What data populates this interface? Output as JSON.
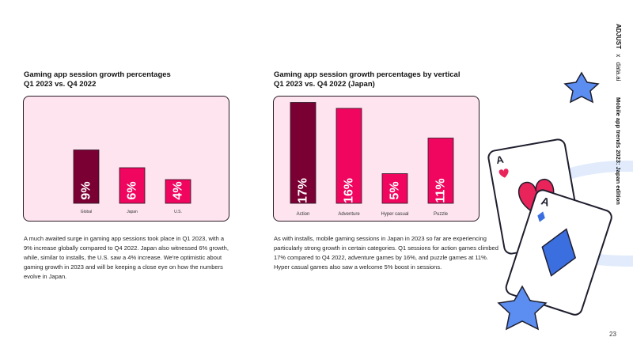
{
  "sidebar": {
    "brand": "ADJUST",
    "times": "x",
    "partner": "data.ai",
    "report": "Mobile app trends 2023: Japan edition"
  },
  "page_number": "23",
  "left": {
    "title_line1": "Gaming app session growth percentages",
    "title_line2": "Q1 2023 vs. Q4 2022",
    "text": "A much awaited surge in gaming app sessions took place in Q1 2023, with a 9% increase globally compared to Q4 2022. Japan also witnessed 6% growth, while, similar to installs, the U.S. saw a 4% increase. We're optimistic about gaming growth in 2023 and will be keeping a close eye on how the numbers evolve in Japan."
  },
  "right": {
    "title_line1": "Gaming app session growth percentages by vertical",
    "title_line2": "Q1 2023 vs. Q4 2022 (Japan)",
    "text": "As with installs, mobile gaming sessions in Japan in 2023 so far are experiencing particularly strong growth in certain categories. Q1 sessions for action games climbed 17% compared to Q4 2022, adventure games by 16%, and puzzle games at 11%. Hyper casual games also saw a welcome 5% boost in sessions."
  },
  "chart_data": [
    {
      "type": "bar",
      "title": "Gaming app session growth percentages Q1 2023 vs. Q4 2022",
      "categories": [
        "Global",
        "Japan",
        "U.S."
      ],
      "values": [
        9,
        6,
        4
      ],
      "labels": [
        "9%",
        "6%",
        "4%"
      ],
      "colors": [
        "#7a0034",
        "#f0055f",
        "#f0055f"
      ],
      "ylim": [
        0,
        18
      ],
      "grid": false
    },
    {
      "type": "bar",
      "title": "Gaming app session growth percentages by vertical Q1 2023 vs. Q4 2022 (Japan)",
      "categories": [
        "Action",
        "Adventure",
        "Hyper casual",
        "Puzzle"
      ],
      "values": [
        17,
        16,
        5,
        11
      ],
      "labels": [
        "17%",
        "16%",
        "5%",
        "11%"
      ],
      "colors": [
        "#7a0034",
        "#f0055f",
        "#f0055f",
        "#f0055f"
      ],
      "ylim": [
        0,
        18
      ],
      "grid": false
    }
  ],
  "colors": {
    "panel_bg": "#fde4ef",
    "accent_dark": "#7a0034",
    "accent": "#f0055f",
    "card_heart": "#e8245a",
    "card_diamond": "#3b6fe0",
    "star": "#5b8ef0"
  },
  "decor": {
    "card1_rank": "A",
    "card2_rank": "A",
    "icons": [
      "heart-icon",
      "diamond-icon",
      "star-icon"
    ]
  }
}
